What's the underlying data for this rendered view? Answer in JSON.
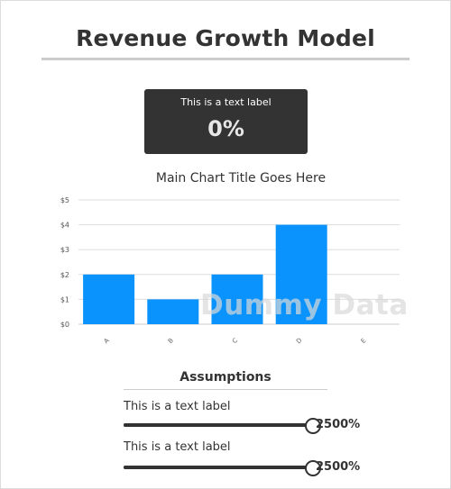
{
  "page": {
    "title": "Revenue Growth Model"
  },
  "kpi": {
    "label": "This is a text label",
    "value": "0%"
  },
  "chart_data": {
    "type": "bar",
    "title": "Main Chart Title Goes Here",
    "categories": [
      "A",
      "B",
      "C",
      "D",
      "E"
    ],
    "values": [
      2,
      1,
      2,
      4,
      0
    ],
    "ylim": [
      0,
      5
    ],
    "yticks": [
      "$0",
      "$1",
      "$2",
      "$3",
      "$4",
      "$5"
    ],
    "grid": true,
    "bar_color": "#0a93fc",
    "watermark": "Dummy Data"
  },
  "assumptions": {
    "title": "Assumptions",
    "sliders": [
      {
        "label": "This is a text label",
        "value_text": "2500%",
        "fraction": 1.0
      },
      {
        "label": "This is a text label",
        "value_text": "2500%",
        "fraction": 1.0
      }
    ]
  }
}
